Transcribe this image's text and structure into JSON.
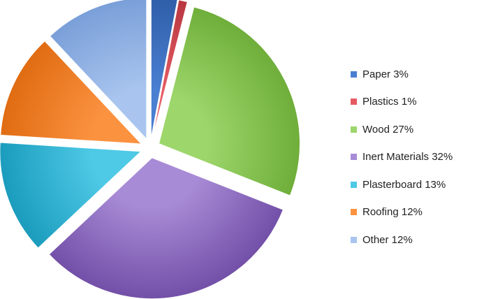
{
  "chart_data": {
    "type": "pie",
    "title": "",
    "legend_position": "right",
    "slices": [
      {
        "label": "Paper 3%",
        "name": "Paper",
        "value": 3,
        "color": "#4a7fd1",
        "shade": "#2f5ea8"
      },
      {
        "label": "Plastics 1%",
        "name": "Plastics",
        "value": 1,
        "color": "#e65b63",
        "shade": "#b8373f"
      },
      {
        "label": "Wood 27%",
        "name": "Wood",
        "value": 27,
        "color": "#9dd66b",
        "shade": "#6fae3a"
      },
      {
        "label": "Inert Materials 32%",
        "name": "Inert Materials",
        "value": 32,
        "color": "#a88bd6",
        "shade": "#7350a8"
      },
      {
        "label": "Plasterboard 13%",
        "name": "Plasterboard",
        "value": 13,
        "color": "#4ec9e6",
        "shade": "#1b9cbd"
      },
      {
        "label": "Roofing 12%",
        "name": "Roofing",
        "value": 12,
        "color": "#fb9240",
        "shade": "#e06c12"
      },
      {
        "label": "Other 12%",
        "name": "Other",
        "value": 12,
        "color": "#a9c5ef",
        "shade": "#7a9fd8"
      }
    ]
  }
}
